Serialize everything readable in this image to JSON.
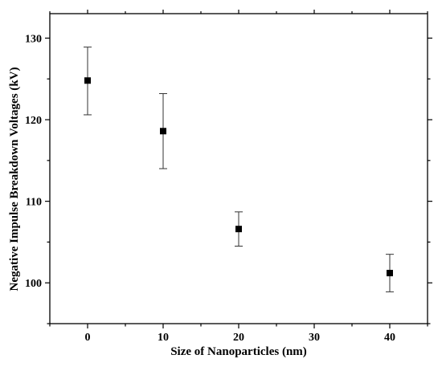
{
  "chart_data": {
    "type": "scatter",
    "title": "",
    "xlabel": "Size of Nanoparticles (nm)",
    "ylabel": "Negative Impulse Breakdown Voltages (kV)",
    "xlim": [
      -5,
      45
    ],
    "ylim": [
      95,
      133
    ],
    "x_ticks": [
      0,
      10,
      20,
      30,
      40
    ],
    "x_tick_labels": [
      "0",
      "10",
      "20",
      "30",
      "40"
    ],
    "y_ticks": [
      100,
      110,
      120,
      130
    ],
    "y_tick_labels": [
      "100",
      "110",
      "120",
      "130"
    ],
    "grid": false,
    "legend": "none",
    "series": [
      {
        "marker": "square",
        "color": "#000000",
        "points": [
          {
            "x": 0,
            "y": 124.8,
            "err_low": 120.6,
            "err_high": 128.9
          },
          {
            "x": 10,
            "y": 118.6,
            "err_low": 114.0,
            "err_high": 123.2
          },
          {
            "x": 20,
            "y": 106.6,
            "err_low": 104.5,
            "err_high": 108.7
          },
          {
            "x": 40,
            "y": 101.2,
            "err_low": 98.9,
            "err_high": 103.5
          }
        ]
      }
    ]
  }
}
